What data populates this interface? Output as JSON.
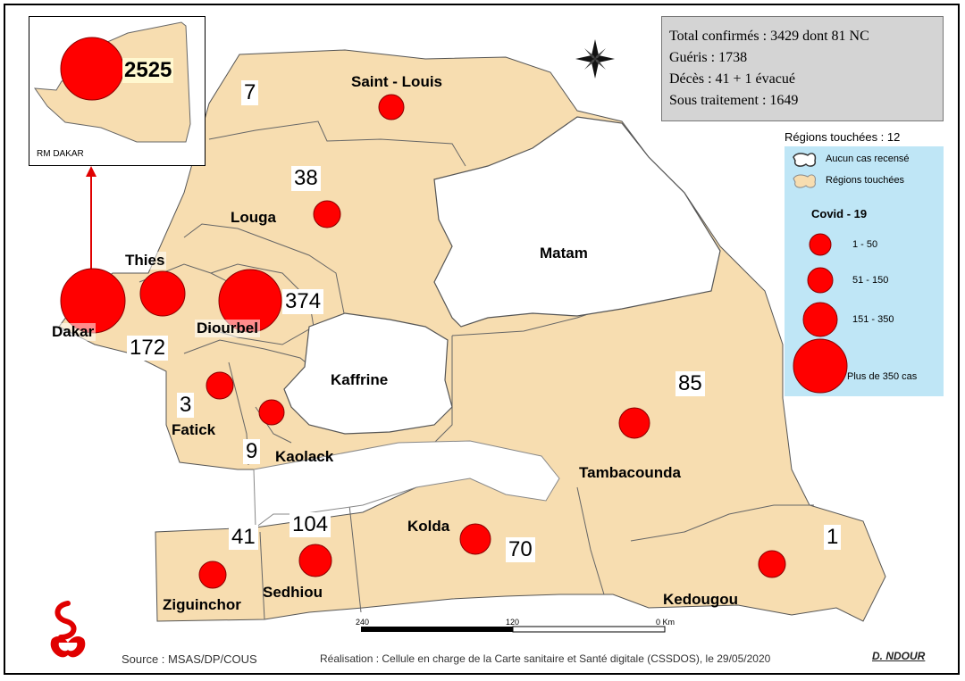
{
  "stats": {
    "total": "Total confirmés : 3429  dont 81  NC",
    "recovered": "Guéris : 1738",
    "deaths": "Décès : 41 + 1 évacué",
    "under_treatment": "Sous traitement : 1649"
  },
  "legend": {
    "regions_touched": "Régions touchées : 12",
    "no_case": "Aucun cas recensé",
    "touched": "Régions touchées",
    "covid_title": "Covid - 19",
    "classes": [
      "1 - 50",
      "51 - 150",
      "151 - 350",
      "Plus de 350 cas"
    ],
    "colors": {
      "touched_fill": "#f7ddb0",
      "no_case_fill": "#ffffff",
      "circle": "#ff0000",
      "legend_bg": "#bfe6f6"
    }
  },
  "inset": {
    "label": "RM DAKAR",
    "count": "2525"
  },
  "regions": [
    {
      "key": "saint-louis",
      "name": "Saint - Louis",
      "count": "7"
    },
    {
      "key": "louga",
      "name": "Louga",
      "count": "38"
    },
    {
      "key": "thies",
      "name": "Thies",
      "count": "172"
    },
    {
      "key": "dakar",
      "name": "Dakar",
      "count": ""
    },
    {
      "key": "diourbel",
      "name": "Diourbel",
      "count": "374"
    },
    {
      "key": "matam",
      "name": "Matam",
      "count": ""
    },
    {
      "key": "kaffrine",
      "name": "Kaffrine",
      "count": ""
    },
    {
      "key": "fatick",
      "name": "Fatick",
      "count": "3"
    },
    {
      "key": "kaolack",
      "name": "Kaolack",
      "count": "9"
    },
    {
      "key": "tambacounda",
      "name": "Tambacounda",
      "count": "85"
    },
    {
      "key": "kolda",
      "name": "Kolda",
      "count": "70"
    },
    {
      "key": "sedhiou",
      "name": "Sedhiou",
      "count": "104"
    },
    {
      "key": "ziguinchor",
      "name": "Ziguinchor",
      "count": "41"
    },
    {
      "key": "kedougou",
      "name": "Kedougou",
      "count": "1"
    }
  ],
  "scale": {
    "left": "240",
    "mid": "120",
    "right": "0 Km"
  },
  "footer": {
    "source": "Source : MSAS/DP/COUS",
    "credit": "Réalisation : Cellule en charge de la Carte sanitaire et Santé digitale (CSSDOS), le 29/05/2020",
    "author": "D. NDOUR"
  }
}
